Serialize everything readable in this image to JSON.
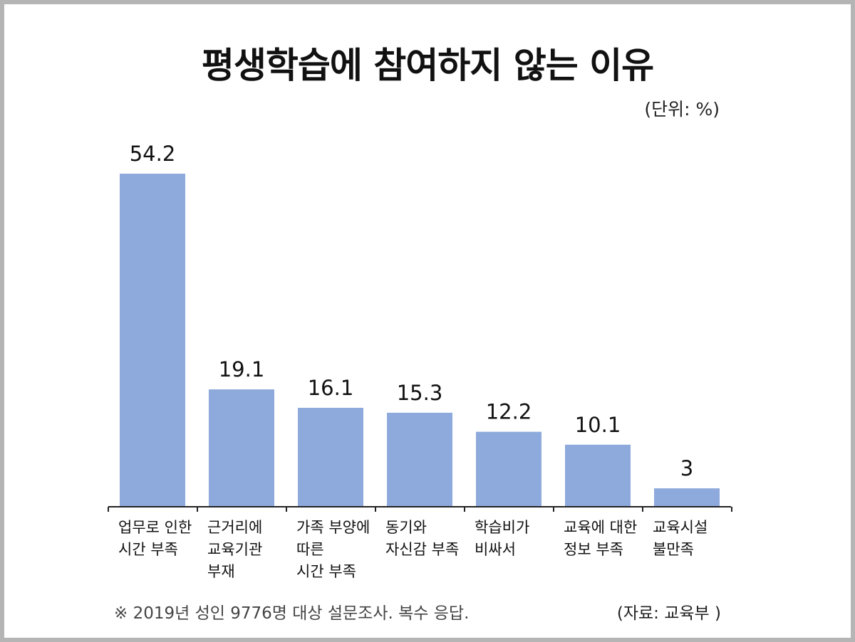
{
  "title": "평생학습에 참여하지 않는 이유",
  "unit_label": "(단위: %)",
  "footnote": "※ 2019년 성인 9776명 대상 설문조사. 복수 응답.",
  "source": "(자료: 교육부 )",
  "colors": {
    "bar": "#8eaadc",
    "frame": "#b5b5b5"
  },
  "chart_data": {
    "type": "bar",
    "title": "평생학습에 참여하지 않는 이유",
    "ylabel": "",
    "xlabel": "",
    "ylim": [
      0,
      54.2
    ],
    "grid": false,
    "categories": [
      [
        "업무로 인한",
        "시간 부족"
      ],
      [
        "근거리에",
        "교육기관",
        "부재"
      ],
      [
        "가족 부양에",
        "따른",
        "시간 부족"
      ],
      [
        "동기와",
        "자신감 부족"
      ],
      [
        "학습비가",
        "비싸서"
      ],
      [
        "교육에 대한",
        "정보 부족"
      ],
      [
        "교육시설",
        "불만족"
      ]
    ],
    "values": [
      54.2,
      19.1,
      16.1,
      15.3,
      12.2,
      10.1,
      3
    ]
  }
}
